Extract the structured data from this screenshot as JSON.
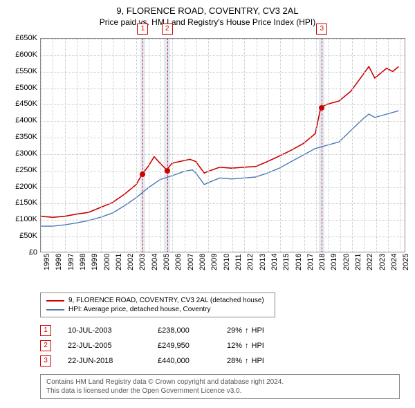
{
  "title": "9, FLORENCE ROAD, COVENTRY, CV3 2AL",
  "subtitle": "Price paid vs. HM Land Registry's House Price Index (HPI)",
  "chart": {
    "type": "line",
    "ylim": [
      0,
      650000
    ],
    "ytick_step": 50000,
    "yticks": [
      "£0",
      "£50K",
      "£100K",
      "£150K",
      "£200K",
      "£250K",
      "£300K",
      "£350K",
      "£400K",
      "£450K",
      "£500K",
      "£550K",
      "£600K",
      "£650K"
    ],
    "xlim": [
      1995,
      2025.5
    ],
    "xticks": [
      1995,
      1996,
      1997,
      1998,
      1999,
      2000,
      2001,
      2002,
      2003,
      2004,
      2005,
      2006,
      2007,
      2008,
      2009,
      2010,
      2011,
      2012,
      2013,
      2014,
      2015,
      2016,
      2017,
      2018,
      2019,
      2020,
      2021,
      2022,
      2023,
      2024,
      2025
    ],
    "grid_color": "#c8c8c8",
    "background_color": "#ffffff",
    "border_color": "#888888",
    "series": [
      {
        "name": "property",
        "label": "9, FLORENCE ROAD, COVENTRY, CV3 2AL (detached house)",
        "color": "#cc0000",
        "line_width": 1.6,
        "points": [
          [
            1995,
            108000
          ],
          [
            1996,
            105000
          ],
          [
            1997,
            108000
          ],
          [
            1998,
            115000
          ],
          [
            1999,
            120000
          ],
          [
            2000,
            135000
          ],
          [
            2001,
            150000
          ],
          [
            2002,
            175000
          ],
          [
            2003,
            205000
          ],
          [
            2003.52,
            238000
          ],
          [
            2004,
            260000
          ],
          [
            2004.5,
            290000
          ],
          [
            2005,
            270000
          ],
          [
            2005.55,
            249950
          ],
          [
            2006,
            270000
          ],
          [
            2007,
            278000
          ],
          [
            2007.5,
            282000
          ],
          [
            2008,
            275000
          ],
          [
            2008.7,
            240000
          ],
          [
            2009,
            245000
          ],
          [
            2010,
            258000
          ],
          [
            2011,
            255000
          ],
          [
            2012,
            258000
          ],
          [
            2013,
            260000
          ],
          [
            2014,
            275000
          ],
          [
            2015,
            292000
          ],
          [
            2016,
            310000
          ],
          [
            2017,
            330000
          ],
          [
            2018,
            360000
          ],
          [
            2018.47,
            440000
          ],
          [
            2019,
            450000
          ],
          [
            2020,
            460000
          ],
          [
            2021,
            490000
          ],
          [
            2022,
            540000
          ],
          [
            2022.5,
            565000
          ],
          [
            2023,
            530000
          ],
          [
            2023.5,
            545000
          ],
          [
            2024,
            560000
          ],
          [
            2024.5,
            550000
          ],
          [
            2025,
            565000
          ]
        ]
      },
      {
        "name": "hpi",
        "label": "HPI: Average price, detached house, Coventry",
        "color": "#4a78b5",
        "line_width": 1.4,
        "points": [
          [
            1995,
            78000
          ],
          [
            1996,
            78000
          ],
          [
            1997,
            82000
          ],
          [
            1998,
            88000
          ],
          [
            1999,
            95000
          ],
          [
            2000,
            105000
          ],
          [
            2001,
            118000
          ],
          [
            2002,
            140000
          ],
          [
            2003,
            165000
          ],
          [
            2004,
            195000
          ],
          [
            2005,
            220000
          ],
          [
            2006,
            232000
          ],
          [
            2007,
            245000
          ],
          [
            2007.7,
            250000
          ],
          [
            2008,
            240000
          ],
          [
            2008.7,
            205000
          ],
          [
            2009,
            210000
          ],
          [
            2010,
            225000
          ],
          [
            2011,
            222000
          ],
          [
            2012,
            225000
          ],
          [
            2013,
            228000
          ],
          [
            2014,
            240000
          ],
          [
            2015,
            255000
          ],
          [
            2016,
            275000
          ],
          [
            2017,
            295000
          ],
          [
            2018,
            315000
          ],
          [
            2019,
            325000
          ],
          [
            2020,
            335000
          ],
          [
            2021,
            370000
          ],
          [
            2022,
            405000
          ],
          [
            2022.5,
            420000
          ],
          [
            2023,
            410000
          ],
          [
            2024,
            420000
          ],
          [
            2025,
            430000
          ]
        ]
      }
    ],
    "markers": [
      {
        "num": "1",
        "x": 2003.52,
        "y": 238000,
        "band_start": 2003.3,
        "band_end": 2003.75
      },
      {
        "num": "2",
        "x": 2005.55,
        "y": 249950,
        "band_start": 2005.3,
        "band_end": 2005.8
      },
      {
        "num": "3",
        "x": 2018.47,
        "y": 440000,
        "band_start": 2018.25,
        "band_end": 2018.7
      }
    ],
    "marker_line_color": "#cc0000",
    "marker_band_color": "#d6e2f0"
  },
  "legend": {
    "items": [
      {
        "color": "#cc0000",
        "label": "9, FLORENCE ROAD, COVENTRY, CV3 2AL (detached house)"
      },
      {
        "color": "#4a78b5",
        "label": "HPI: Average price, detached house, Coventry"
      }
    ]
  },
  "sales": [
    {
      "num": "1",
      "date": "10-JUL-2003",
      "price": "£238,000",
      "diff_pct": "29%",
      "diff_dir": "↑",
      "diff_ref": "HPI"
    },
    {
      "num": "2",
      "date": "22-JUL-2005",
      "price": "£249,950",
      "diff_pct": "12%",
      "diff_dir": "↑",
      "diff_ref": "HPI"
    },
    {
      "num": "3",
      "date": "22-JUN-2018",
      "price": "£440,000",
      "diff_pct": "28%",
      "diff_dir": "↑",
      "diff_ref": "HPI"
    }
  ],
  "attribution": {
    "line1": "Contains HM Land Registry data © Crown copyright and database right 2024.",
    "line2": "This data is licensed under the Open Government Licence v3.0."
  }
}
